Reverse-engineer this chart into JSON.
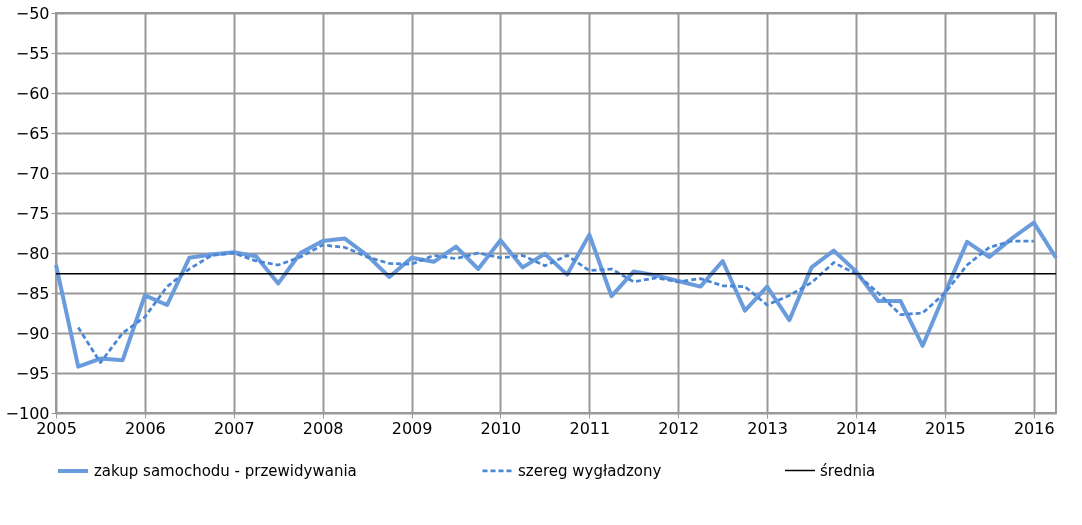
{
  "chart_data": {
    "type": "line",
    "x": [
      2005,
      2005.25,
      2005.5,
      2005.75,
      2006,
      2006.25,
      2006.5,
      2006.75,
      2007,
      2007.25,
      2007.5,
      2007.75,
      2008,
      2008.25,
      2008.5,
      2008.75,
      2009,
      2009.25,
      2009.5,
      2009.75,
      2010,
      2010.25,
      2010.5,
      2010.75,
      2011,
      2011.25,
      2011.5,
      2011.75,
      2012,
      2012.25,
      2012.5,
      2012.75,
      2013,
      2013.25,
      2013.5,
      2013.75,
      2014,
      2014.25,
      2014.5,
      2014.75,
      2015,
      2015.25,
      2015.5,
      2015.75,
      2016,
      2016.25
    ],
    "series": [
      {
        "name": "zakup samochodu - przewidywania",
        "color": "#6a9bdc",
        "line_style": "solid",
        "values": [
          -81.5,
          -94.2,
          -93.2,
          -93.4,
          -85.3,
          -86.5,
          -80.6,
          -80.2,
          -79.9,
          -80.4,
          -83.8,
          -80.0,
          -78.5,
          -78.2,
          -80.3,
          -83.0,
          -80.6,
          -81.1,
          -79.2,
          -82.0,
          -78.4,
          -81.8,
          -80.1,
          -82.7,
          -77.7,
          -85.4,
          -82.3,
          -82.8,
          -83.5,
          -84.2,
          -81.0,
          -87.2,
          -84.2,
          -88.4,
          -81.8,
          -79.7,
          -82.3,
          -86.0,
          -86.0,
          -91.6,
          -85.0,
          -78.6,
          -80.5,
          -78.2,
          -76.2,
          -80.6
        ]
      },
      {
        "name": "szereg wygładzony",
        "color": "#4a86d6",
        "line_style": "dashed",
        "values": [
          null,
          -89.3,
          -93.7,
          -90.0,
          -88.0,
          -84.2,
          -82.0,
          -80.3,
          -80.0,
          -81.0,
          -81.5,
          -80.5,
          -79.0,
          -79.3,
          -80.5,
          -81.3,
          -81.4,
          -80.3,
          -80.7,
          -80.0,
          -80.6,
          -80.3,
          -81.6,
          -80.3,
          -82.2,
          -82.0,
          -83.6,
          -83.1,
          -83.6,
          -83.2,
          -84.1,
          -84.2,
          -86.5,
          -85.3,
          -83.7,
          -81.2,
          -82.6,
          -85.0,
          -87.7,
          -87.5,
          -85.0,
          -81.5,
          -79.3,
          -78.5,
          -78.5,
          null
        ]
      }
    ],
    "ref_lines": [
      {
        "axis": "y",
        "value": -82.6,
        "label": "średnia",
        "color": "#000000",
        "line_style": "solid"
      }
    ],
    "xlim": [
      2005,
      2016.25
    ],
    "xticks": [
      2005,
      2006,
      2007,
      2008,
      2009,
      2010,
      2011,
      2012,
      2013,
      2014,
      2015,
      2016
    ],
    "ylim": [
      -100,
      -50
    ],
    "yticks": [
      -100,
      -95,
      -90,
      -85,
      -80,
      -75,
      -70,
      -65,
      -60,
      -55,
      -50
    ],
    "grid": true,
    "legend": "bottom",
    "marker": "none"
  }
}
